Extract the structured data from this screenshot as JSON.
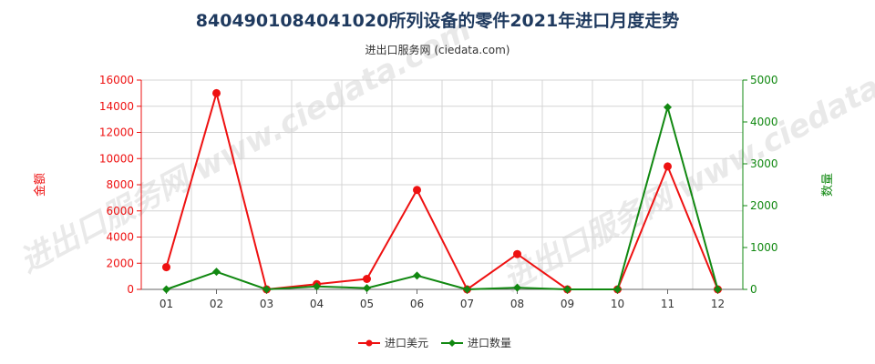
{
  "title": "8404901084041020所列设备的零件2021年进口月度走势",
  "subtitle": "进出口服务网 (ciedata.com)",
  "watermark": "进出口服务网 www.ciedata.com",
  "chart_data": {
    "type": "line",
    "categories": [
      "01",
      "02",
      "03",
      "04",
      "05",
      "06",
      "07",
      "08",
      "09",
      "10",
      "11",
      "12"
    ],
    "series": [
      {
        "name": "进口美元",
        "axis": "left",
        "color": "#ee1111",
        "values": [
          1700,
          15000,
          0,
          400,
          800,
          7600,
          0,
          2700,
          0,
          0,
          9400,
          0
        ]
      },
      {
        "name": "进口数量",
        "axis": "right",
        "color": "#118811",
        "values": [
          0,
          420,
          0,
          70,
          30,
          330,
          0,
          40,
          0,
          0,
          4350,
          0
        ]
      }
    ],
    "y_left": {
      "label": "金额",
      "min": 0,
      "max": 16000,
      "ticks": [
        0,
        2000,
        4000,
        6000,
        8000,
        10000,
        12000,
        14000,
        16000
      ],
      "color": "#ee1111"
    },
    "y_right": {
      "label": "数量",
      "min": 0,
      "max": 5000,
      "ticks": [
        0,
        1000,
        2000,
        3000,
        4000,
        5000
      ],
      "color": "#118811"
    },
    "grid": true,
    "legend_position": "bottom"
  }
}
